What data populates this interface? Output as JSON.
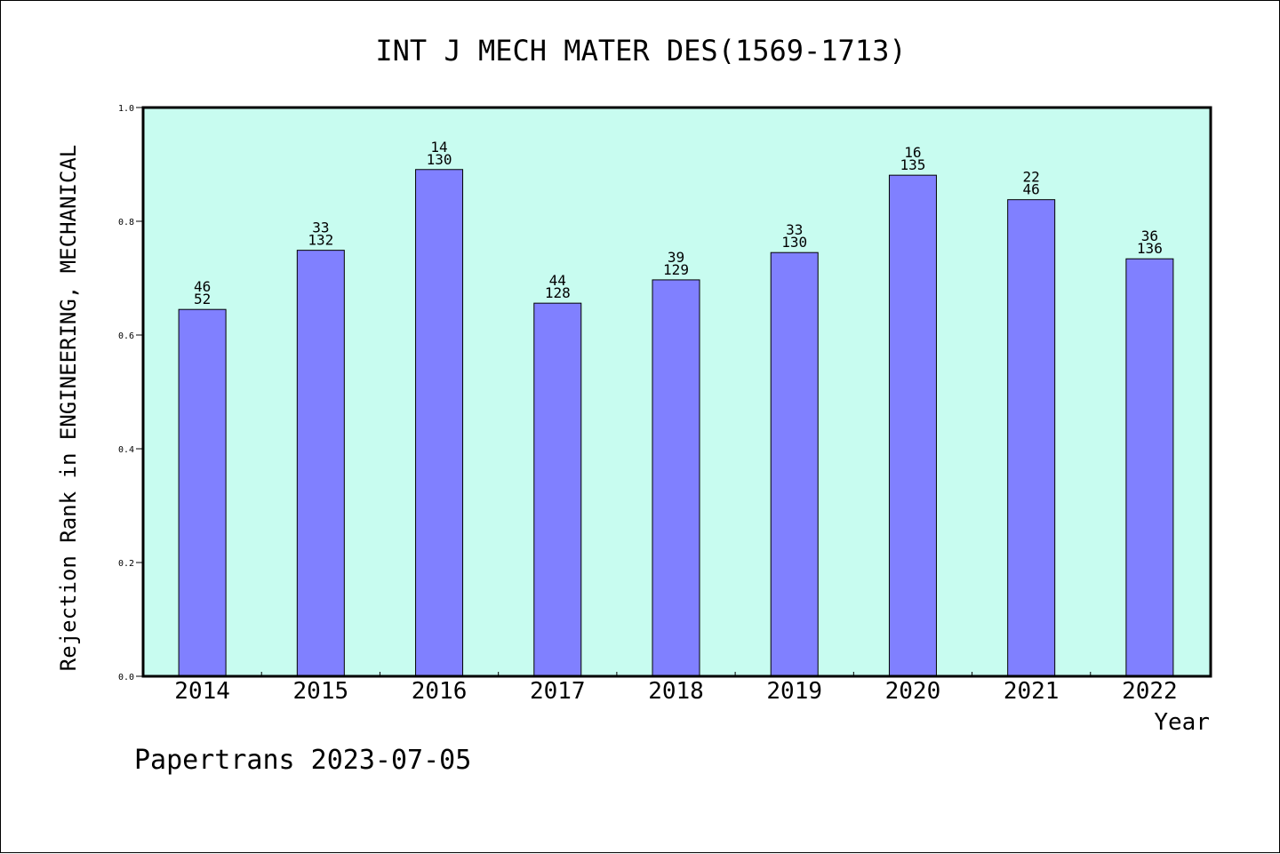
{
  "chart_data": {
    "type": "bar",
    "title": "INT J MECH MATER DES(1569-1713)",
    "xlabel": "Year",
    "ylabel": "Rejection Rank in ENGINEERING, MECHANICAL",
    "ylim": [
      0,
      1.0
    ],
    "yticks": [
      "0.0",
      "0.2",
      "0.4",
      "0.6",
      "0.8",
      "1.0"
    ],
    "categories": [
      "2014",
      "2015",
      "2016",
      "2017",
      "2018",
      "2019",
      "2020",
      "2021",
      "2022"
    ],
    "values": [
      0.645,
      0.749,
      0.891,
      0.656,
      0.697,
      0.745,
      0.881,
      0.838,
      0.734
    ],
    "labels_top": [
      "46",
      "33",
      "14",
      "44",
      "39",
      "33",
      "16",
      "22",
      "36"
    ],
    "labels_bottom": [
      "52",
      "132",
      "130",
      "128",
      "129",
      "130",
      "135",
      "46",
      "136"
    ],
    "grid": false,
    "colors": {
      "bar": "#8080ff",
      "plot_bg": "#c8fcf0",
      "frame": "#000000"
    }
  },
  "footer": "Papertrans 2023-07-05"
}
